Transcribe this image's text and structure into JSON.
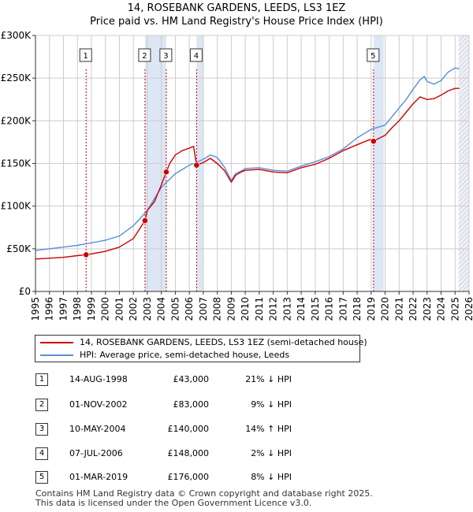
{
  "title_line1": "14, ROSEBANK GARDENS, LEEDS, LS3 1EZ",
  "title_line2": "Price paid vs. HM Land Registry's House Price Index (HPI)",
  "colors": {
    "property": "#cc0000",
    "hpi": "#5b8fd6",
    "band": "#dde6f5",
    "grid": "#cccccc",
    "vline": "#cc0000"
  },
  "chart_data": {
    "type": "line",
    "title": "Price paid vs. HM Land Registry's House Price Index (HPI)",
    "xlim": [
      1995,
      2026
    ],
    "ylim": [
      0,
      300000
    ],
    "x_ticks": [
      "1995",
      "1996",
      "1997",
      "1998",
      "1999",
      "2000",
      "2001",
      "2002",
      "2003",
      "2004",
      "2005",
      "2006",
      "2007",
      "2008",
      "2009",
      "2010",
      "2011",
      "2012",
      "2013",
      "2014",
      "2015",
      "2016",
      "2017",
      "2018",
      "2019",
      "2020",
      "2021",
      "2022",
      "2023",
      "2024",
      "2025",
      "2026"
    ],
    "y_ticks": [
      {
        "value": 0,
        "label": "£0"
      },
      {
        "value": 50000,
        "label": "£50K"
      },
      {
        "value": 100000,
        "label": "£100K"
      },
      {
        "value": 150000,
        "label": "£150K"
      },
      {
        "value": 200000,
        "label": "£200K"
      },
      {
        "value": 250000,
        "label": "£250K"
      },
      {
        "value": 300000,
        "label": "£300K"
      }
    ],
    "shaded_bands": [
      [
        2002.83,
        2004.35
      ],
      [
        2006.52,
        2007.0
      ],
      [
        2019.17,
        2019.9
      ],
      [
        2025.25,
        2026
      ]
    ],
    "hatched_from": 2025.25,
    "series": [
      {
        "name": "14, ROSEBANK GARDENS, LEEDS, LS3 1EZ (semi-detached house)",
        "x": [
          1995,
          1996,
          1997,
          1998,
          1998.62,
          1999,
          2000,
          2001,
          2002,
          2002.83,
          2003,
          2003.5,
          2004,
          2004.35,
          2004.6,
          2005,
          2005.5,
          2006,
          2006.3,
          2006.52,
          2007,
          2007.5,
          2008,
          2008.5,
          2009,
          2009.3,
          2009.7,
          2010,
          2011,
          2012,
          2013,
          2014,
          2015,
          2016,
          2017,
          2018,
          2018.9,
          2019.17,
          2019.5,
          2020,
          2020.5,
          2021,
          2021.5,
          2022,
          2022.5,
          2023,
          2023.5,
          2024,
          2024.5,
          2025,
          2025.3
        ],
        "values": [
          38000,
          39000,
          40000,
          42000,
          43000,
          44000,
          47000,
          52000,
          62000,
          83000,
          95000,
          105000,
          125000,
          140000,
          150000,
          160000,
          165000,
          168000,
          170000,
          148000,
          151000,
          156000,
          150000,
          142000,
          128000,
          136000,
          140000,
          142000,
          143000,
          140000,
          139000,
          145000,
          149000,
          156000,
          165000,
          172000,
          178000,
          176000,
          179000,
          183000,
          192000,
          200000,
          210000,
          220000,
          228000,
          225000,
          226000,
          230000,
          235000,
          238000,
          238000
        ]
      },
      {
        "name": "HPI: Average price, semi-detached house, Leeds",
        "x": [
          1995,
          1996,
          1997,
          1998,
          1999,
          2000,
          2001,
          2002,
          2003,
          2004,
          2005,
          2005.5,
          2006,
          2006.5,
          2007,
          2007.5,
          2008,
          2008.5,
          2009,
          2009.3,
          2009.7,
          2010,
          2011,
          2012,
          2013,
          2014,
          2015,
          2016,
          2017,
          2018,
          2019,
          2020,
          2020.5,
          2021,
          2021.5,
          2022,
          2022.5,
          2022.8,
          2023,
          2023.5,
          2024,
          2024.5,
          2025,
          2025.3
        ],
        "values": [
          48000,
          50000,
          52000,
          54000,
          57000,
          60000,
          65000,
          77000,
          95000,
          122000,
          138000,
          143000,
          148000,
          151000,
          155000,
          160000,
          157000,
          146000,
          130000,
          138000,
          141000,
          144000,
          145000,
          142000,
          141000,
          147000,
          152000,
          158000,
          167000,
          180000,
          190000,
          195000,
          205000,
          215000,
          225000,
          237000,
          248000,
          252000,
          246000,
          243000,
          247000,
          257000,
          262000,
          261000
        ]
      }
    ],
    "sales": [
      {
        "label": "1",
        "x": 1998.62,
        "value": 43000
      },
      {
        "label": "2",
        "x": 2002.83,
        "value": 83000
      },
      {
        "label": "3",
        "x": 2004.35,
        "value": 140000
      },
      {
        "label": "4",
        "x": 2006.52,
        "value": 148000
      },
      {
        "label": "5",
        "x": 2019.17,
        "value": 176000
      }
    ],
    "legend": [
      "14, ROSEBANK GARDENS, LEEDS, LS3 1EZ (semi-detached house)",
      "HPI: Average price, semi-detached house, Leeds"
    ]
  },
  "transactions": [
    {
      "num": "1",
      "date": "14-AUG-1998",
      "price": "£43,000",
      "hpi": "21% ↓ HPI"
    },
    {
      "num": "2",
      "date": "01-NOV-2002",
      "price": "£83,000",
      "hpi": "9% ↓ HPI"
    },
    {
      "num": "3",
      "date": "10-MAY-2004",
      "price": "£140,000",
      "hpi": "14% ↑ HPI"
    },
    {
      "num": "4",
      "date": "07-JUL-2006",
      "price": "£148,000",
      "hpi": "2% ↓ HPI"
    },
    {
      "num": "5",
      "date": "01-MAR-2019",
      "price": "£176,000",
      "hpi": "8% ↓ HPI"
    }
  ],
  "footer_line1": "Contains HM Land Registry data © Crown copyright and database right 2025.",
  "footer_line2": "This data is licensed under the Open Government Licence v3.0."
}
